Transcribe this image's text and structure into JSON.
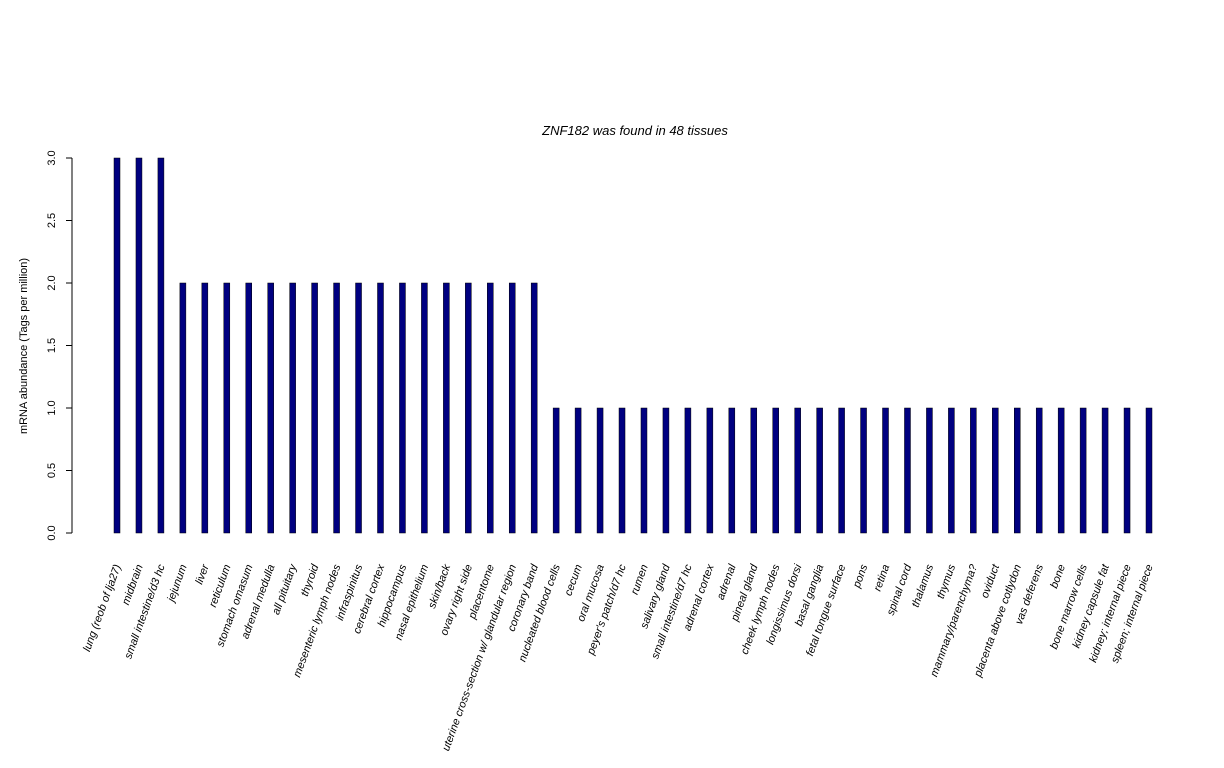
{
  "chart_data": {
    "type": "bar",
    "title": "ZNF182  was found in  48  tissues",
    "ylabel": "mRNA abundance (Tags per million)",
    "ylim": [
      0,
      3
    ],
    "yticks": [
      "0.0",
      "0.5",
      "1.0",
      "1.5",
      "2.0",
      "2.5",
      "3.0"
    ],
    "bar_color": "#000080",
    "categories": [
      "lung (reob of lja27)",
      "midbrain",
      "small intestine/d3 hc",
      "jejunum",
      "liver",
      "reticulum",
      "stomach omasum",
      "adrenal medulla",
      "all pituitary",
      "thyroid",
      "mesenteric lymph nodes",
      "infraspinitus",
      "cerebral cortex",
      "hippocampus",
      "nasal epithelium",
      "skin/back",
      "ovary right side",
      "placentome",
      "uterine cross-section w/ glandular region",
      "coronary band",
      "nucleated blood cells",
      "cecum",
      "oral mucosa",
      "peyer's patch/d7 hc",
      "rumen",
      "salivary gland",
      "small intestine/d7 hc",
      "adrenal cortex",
      "adrenal",
      "pineal gland",
      "cheek lymph nodes",
      "longissimus dorsi",
      "basal ganglia",
      "fetal tongue surface",
      "pons",
      "retina",
      "spinal cord",
      "thalamus",
      "thymus",
      "mammary/parenchyma?",
      "oviduct",
      "placenta above cotlydon",
      "vas deferens",
      "bone",
      "bone marrow cells",
      "kidney capsule fat",
      "kidney; internal piece",
      "spleen; internal piece"
    ],
    "values": [
      3,
      3,
      3,
      2,
      2,
      2,
      2,
      2,
      2,
      2,
      2,
      2,
      2,
      2,
      2,
      2,
      2,
      2,
      2,
      2,
      1,
      1,
      1,
      1,
      1,
      1,
      1,
      1,
      1,
      1,
      1,
      1,
      1,
      1,
      1,
      1,
      1,
      1,
      1,
      1,
      1,
      1,
      1,
      1,
      1,
      1,
      1,
      1
    ]
  }
}
